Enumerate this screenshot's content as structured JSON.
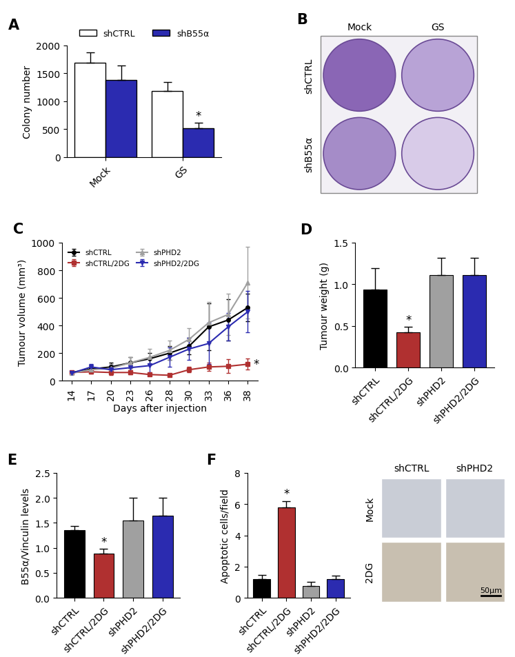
{
  "chart_data": [
    {
      "panel": "A",
      "type": "grouped_bar",
      "categories": [
        "Mock",
        "GS"
      ],
      "ylabel": "Colony number",
      "ylim": [
        0,
        2000
      ],
      "yticks": [
        0,
        500,
        1000,
        1500,
        2000
      ],
      "legend": "top",
      "series": [
        {
          "name": "shCTRL",
          "color": "#ffffff",
          "values": [
            1690,
            1185
          ],
          "errors": [
            190,
            160
          ],
          "annotations": [
            null,
            null
          ]
        },
        {
          "name": "shB55α",
          "color": "#2b2bb0",
          "values": [
            1380,
            520
          ],
          "errors": [
            260,
            90
          ],
          "annotations": [
            null,
            "*"
          ]
        }
      ]
    },
    {
      "panel": "C",
      "type": "line",
      "x": [
        "14",
        "17",
        "20",
        "23",
        "26",
        "28",
        "30",
        "33",
        "36",
        "38"
      ],
      "xlabel": "Days after injection",
      "ylabel": "Tumour volume (mm³)",
      "ylim": [
        0,
        1000
      ],
      "yticks": [
        0,
        200,
        400,
        600,
        800,
        1000
      ],
      "legend": "upper left",
      "series": [
        {
          "name": "shCTRL",
          "color": "#000000",
          "marker": "circle",
          "line_style": "solid",
          "values": [
            60,
            85,
            100,
            130,
            160,
            200,
            250,
            390,
            440,
            530
          ],
          "errors": [
            10,
            20,
            30,
            40,
            40,
            50,
            60,
            170,
            150,
            100
          ]
        },
        {
          "name": "shCTRL/2DG",
          "color": "#b03030",
          "marker": "square",
          "line_style": "solid",
          "annotation": "*",
          "values": [
            60,
            65,
            60,
            60,
            45,
            40,
            80,
            100,
            105,
            120
          ],
          "errors": [
            10,
            15,
            20,
            15,
            10,
            10,
            20,
            30,
            50,
            40
          ]
        },
        {
          "name": "shPHD2",
          "color": "#a0a0a0",
          "marker": "triangle",
          "line_style": "solid",
          "values": [
            55,
            80,
            90,
            130,
            170,
            220,
            300,
            420,
            480,
            710
          ],
          "errors": [
            10,
            20,
            30,
            40,
            60,
            70,
            80,
            150,
            150,
            260
          ]
        },
        {
          "name": "shPHD2/2DG",
          "color": "#2b2bb0",
          "marker": "triangle_down",
          "line_style": "solid",
          "values": [
            55,
            100,
            80,
            95,
            110,
            170,
            230,
            270,
            390,
            500
          ],
          "errors": [
            10,
            20,
            30,
            40,
            50,
            70,
            80,
            150,
            100,
            150
          ]
        }
      ]
    },
    {
      "panel": "D",
      "type": "bar",
      "categories": [
        "shCTRL",
        "shCTRL/2DG",
        "shPHD2",
        "shPHD2/2DG"
      ],
      "ylabel": "Tumour weight (g)",
      "colors": [
        "#000000",
        "#b03030",
        "#a0a0a0",
        "#2b2bb0"
      ],
      "values": [
        0.94,
        0.42,
        1.11,
        1.11
      ],
      "errors": [
        0.25,
        0.07,
        0.21,
        0.21
      ],
      "annotations": [
        null,
        "*",
        null,
        null
      ],
      "ylim": [
        0,
        1.5
      ],
      "yticks": [
        {
          "value": 0,
          "label": "0.0"
        },
        0.5,
        {
          "value": 1,
          "label": "1.0"
        },
        1.5
      ]
    },
    {
      "panel": "E",
      "type": "bar",
      "categories": [
        "shCTRL",
        "shCTRL/2DG",
        "shPHD2",
        "shPHD2/2DG"
      ],
      "ylabel": "B55α/Vinculin levels",
      "colors": [
        "#000000",
        "#b03030",
        "#a0a0a0",
        "#2b2bb0"
      ],
      "values": [
        1.35,
        0.88,
        1.55,
        1.65
      ],
      "errors": [
        0.08,
        0.1,
        0.45,
        0.35
      ],
      "annotations": [
        null,
        "*",
        null,
        null
      ],
      "ylim": [
        0,
        2.5
      ],
      "yticks": [
        {
          "value": 0,
          "label": "0.0"
        },
        0.5,
        {
          "value": 1,
          "label": "1.0"
        },
        1.5,
        {
          "value": 2,
          "label": "2.0"
        },
        2.5
      ]
    },
    {
      "panel": "F",
      "type": "bar",
      "categories": [
        "shCTRL",
        "shCTRL/2DG",
        "shPHD2",
        "shPHD2/2DG"
      ],
      "ylabel": "Apoptotic cells/field",
      "colors": [
        "#000000",
        "#b03030",
        "#a0a0a0",
        "#2b2bb0"
      ],
      "values": [
        1.2,
        5.8,
        0.75,
        1.2
      ],
      "errors": [
        0.25,
        0.4,
        0.25,
        0.2
      ],
      "annotations": [
        null,
        "*",
        null,
        null
      ],
      "ylim": [
        0,
        8
      ],
      "yticks": [
        0,
        2,
        4,
        6,
        8
      ]
    }
  ],
  "images": [
    {
      "panel": "B",
      "kind": "plates",
      "columns": [
        "Mock",
        "GS"
      ],
      "rows": [
        "shCTRL",
        "shB55α"
      ]
    },
    {
      "kind": "sections",
      "columns": [
        "shCTRL",
        "shPHD2"
      ],
      "rows": [
        "Mock",
        "2DG"
      ],
      "scale_bar": "50μm"
    }
  ]
}
